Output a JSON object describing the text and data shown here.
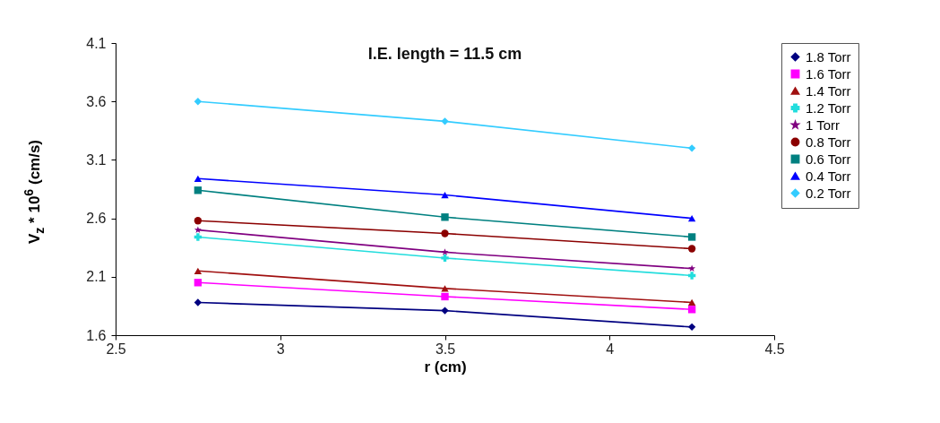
{
  "chart_data": {
    "type": "line",
    "title": "I.E. length = 11.5 cm",
    "xlabel": "r (cm)",
    "ylabel": "V$_{z}$ * 10$^{6}$ (cm/s)",
    "x": [
      2.75,
      3.5,
      4.25
    ],
    "series": [
      {
        "name": "1.8 Torr",
        "color": "#000080",
        "marker": "diamond",
        "values": [
          1.88,
          1.81,
          1.67
        ]
      },
      {
        "name": "1.6 Torr",
        "color": "#ff00ff",
        "marker": "square",
        "values": [
          2.05,
          1.93,
          1.82
        ]
      },
      {
        "name": "1.4 Torr",
        "color": "#a01010",
        "marker": "triangle",
        "values": [
          2.15,
          2.0,
          1.88
        ]
      },
      {
        "name": "1.2 Torr",
        "color": "#22dddd",
        "marker": "cross",
        "values": [
          2.44,
          2.26,
          2.11
        ]
      },
      {
        "name": "1 Torr",
        "color": "#800080",
        "marker": "star",
        "values": [
          2.5,
          2.31,
          2.17
        ]
      },
      {
        "name": "0.8 Torr",
        "color": "#8b0000",
        "marker": "circle",
        "values": [
          2.58,
          2.47,
          2.34
        ]
      },
      {
        "name": "0.6 Torr",
        "color": "#008080",
        "marker": "square",
        "values": [
          2.84,
          2.61,
          2.44
        ]
      },
      {
        "name": "0.4 Torr",
        "color": "#0000ff",
        "marker": "triangle",
        "values": [
          2.94,
          2.8,
          2.6
        ]
      },
      {
        "name": "0.2 Torr",
        "color": "#33ccff",
        "marker": "diamond",
        "values": [
          3.6,
          3.43,
          3.2
        ]
      }
    ],
    "xlim": [
      2.5,
      4.5
    ],
    "xticks": [
      2.5,
      3,
      3.5,
      4,
      4.5
    ],
    "ylim": [
      1.6,
      4.1
    ],
    "yticks": [
      1.6,
      2.1,
      2.6,
      3.1,
      3.6,
      4.1
    ],
    "legend": "right"
  }
}
